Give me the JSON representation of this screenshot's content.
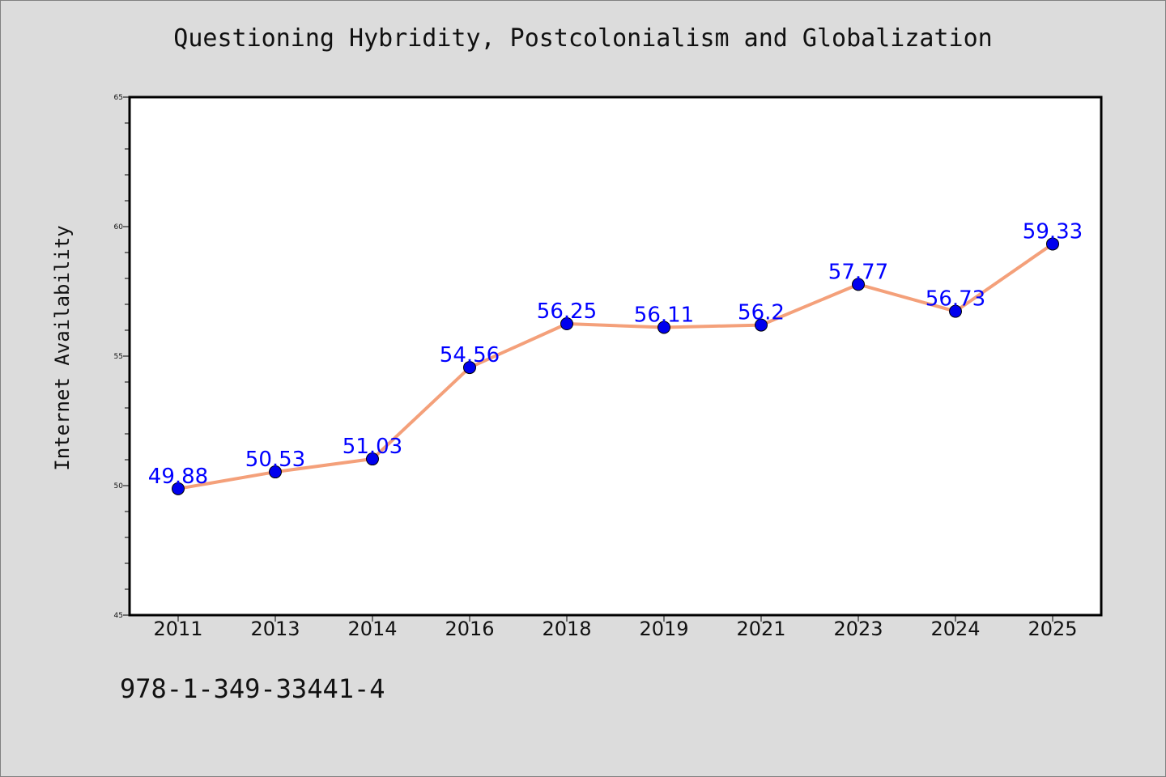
{
  "chart_data": {
    "type": "line",
    "title": "Questioning Hybridity, Postcolonialism and Globalization",
    "xlabel": "",
    "ylabel": "Internet Availability",
    "categories": [
      "2011",
      "2013",
      "2014",
      "2016",
      "2018",
      "2019",
      "2021",
      "2023",
      "2024",
      "2025"
    ],
    "values": [
      49.88,
      50.53,
      51.03,
      54.56,
      56.25,
      56.11,
      56.2,
      57.77,
      56.73,
      59.33
    ],
    "data_labels": [
      "49.88",
      "50.53",
      "51.03",
      "54.56",
      "56.25",
      "56.11",
      "56.2",
      "57.77",
      "56.73",
      "59.33"
    ],
    "ylim": [
      45,
      65
    ],
    "yticks": [
      "45",
      "50",
      "55",
      "60",
      "65"
    ],
    "grid": false,
    "legend": "none",
    "line_color": "#f4a07a",
    "marker_color": "#0000ee",
    "label_color": "#0000ff"
  },
  "footer": {
    "isbn": "978-1-349-33441-4"
  }
}
